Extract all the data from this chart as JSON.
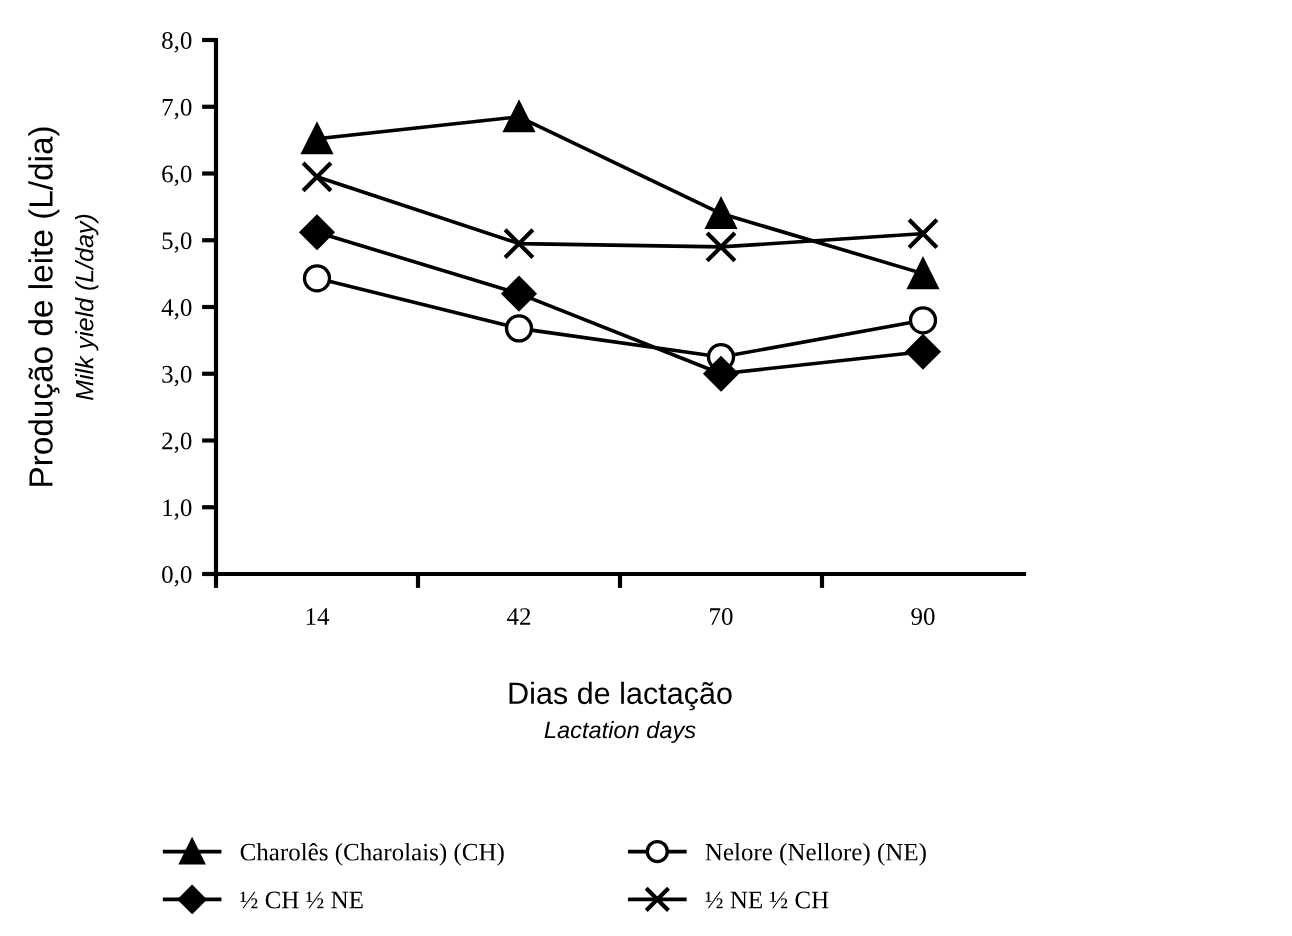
{
  "chart_data": {
    "type": "line",
    "xlabel": "Dias de lactação\nLactation days",
    "ylabel": "Produção de leite (L/dia)\nMilk yield (L/day)",
    "categories": [
      "14",
      "42",
      "70",
      "90"
    ],
    "series": [
      {
        "name": "Charolês (Charolais) (CH)",
        "color": "#000000",
        "marker": "triangle",
        "values": [
          6.52,
          6.85,
          5.4,
          4.5
        ]
      },
      {
        "name": "Nelore (Nellore) (NE)",
        "color": "#000000",
        "marker": "circle",
        "values": [
          4.43,
          3.68,
          3.25,
          3.8
        ]
      },
      {
        "name": "½ CH ½ NE",
        "color": "#000000",
        "marker": "diamond",
        "values": [
          5.12,
          4.2,
          3.0,
          3.33
        ]
      },
      {
        "name": "½ NE ½ CH",
        "color": "#000000",
        "marker": "cross",
        "values": [
          5.95,
          4.95,
          4.9,
          5.1
        ]
      }
    ],
    "ylim": [
      0,
      8
    ],
    "yticks": [
      {
        "value": 0,
        "label": "0,0"
      },
      {
        "value": 1,
        "label": "1,0"
      },
      {
        "value": 2,
        "label": "2,0"
      },
      {
        "value": 3,
        "label": "3,0"
      },
      {
        "value": 4,
        "label": "4,0"
      },
      {
        "value": 5,
        "label": "5,0"
      },
      {
        "value": 6,
        "label": "6,0"
      },
      {
        "value": 7,
        "label": "7,0"
      },
      {
        "value": 8,
        "label": "8,0"
      }
    ],
    "grid": false,
    "legend": "bottom",
    "line_style": "solid"
  }
}
